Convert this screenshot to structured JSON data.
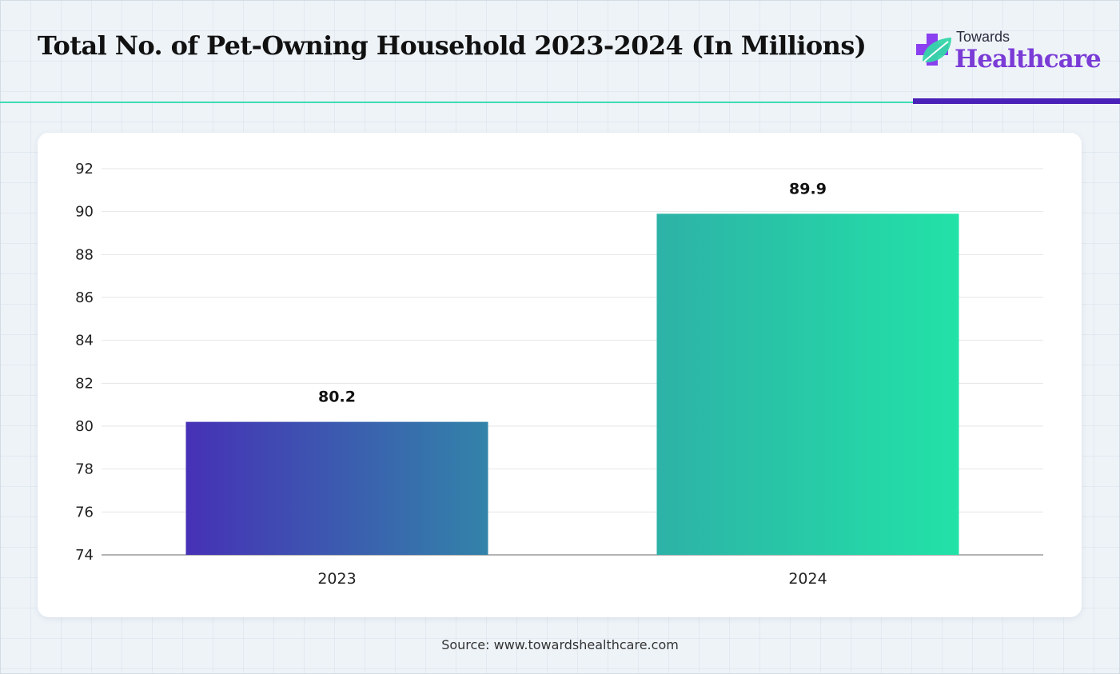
{
  "header": {
    "title": "Total No. of Pet-Owning Household 2023-2024 (In Millions)"
  },
  "logo": {
    "top_text": "Towards",
    "main_text": "Healthcare",
    "icon": "medical-cross-leaf-icon",
    "colors": {
      "cross": "#8a3ff0",
      "leaf": "#35d6a8",
      "text": "#7a3bd6"
    }
  },
  "accents": {
    "green_rule": "#3fdbb4",
    "purple_rule": "#4a21b8"
  },
  "chart_data": {
    "type": "bar",
    "categories": [
      "2023",
      "2024"
    ],
    "values": [
      80.2,
      89.9
    ],
    "data_labels": [
      "80.2",
      "89.9"
    ],
    "title": "Total No. of Pet-Owning Household 2023-2024 (In Millions)",
    "xlabel": "",
    "ylabel": "",
    "ylim": [
      74,
      92
    ],
    "yticks": [
      74,
      76,
      78,
      80,
      82,
      84,
      86,
      88,
      90,
      92
    ],
    "grid": true,
    "legend": "none",
    "bar_gradients": [
      [
        "#4631b6",
        "#3283a9"
      ],
      [
        "#2db2a7",
        "#22e2a7"
      ]
    ]
  },
  "footer": {
    "source": "Source: www.towardshealthcare.com"
  }
}
